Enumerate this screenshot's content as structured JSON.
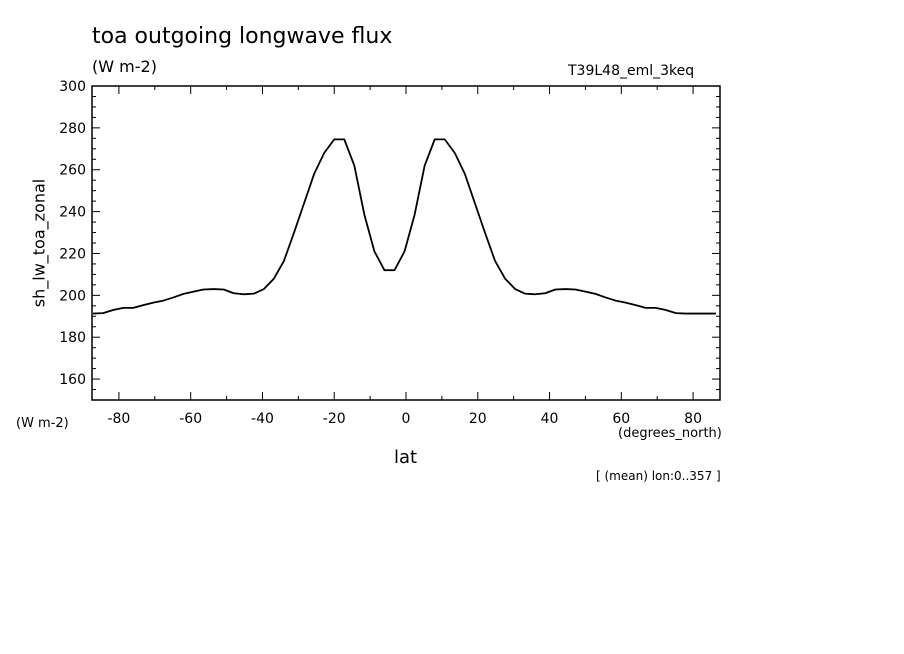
{
  "chart_data": {
    "type": "line",
    "title": "toa outgoing longwave flux",
    "units": "(W m-2)",
    "run_label": "T39L48_eml_3keq",
    "ylabel": "sh_lw_toa_zonal",
    "yunits": "(W m-2)",
    "xlabel": "lat",
    "xunits": "(degrees_north)",
    "note": "[ (mean) lon:0..357 ]",
    "xlim": [
      -87.5,
      87.5
    ],
    "ylim": [
      150,
      300
    ],
    "xticks": [
      -80,
      -60,
      -40,
      -20,
      0,
      20,
      40,
      60,
      80
    ],
    "yticks": [
      160,
      180,
      200,
      220,
      240,
      260,
      280,
      300
    ],
    "line_color": "#000000",
    "series": [
      {
        "x": [
          -87.2,
          -84.4,
          -81.6,
          -78.8,
          -76.0,
          -73.2,
          -70.4,
          -67.6,
          -64.8,
          -62.0,
          -59.2,
          -56.4,
          -53.6,
          -50.8,
          -48.0,
          -45.2,
          -42.4,
          -39.6,
          -36.8,
          -34.0,
          -31.2,
          -28.4,
          -25.6,
          -22.8,
          -20.0,
          -17.2,
          -14.4,
          -11.6,
          -8.8,
          -6.0,
          -3.2,
          -0.4,
          2.4,
          5.2,
          8.0,
          10.8,
          13.6,
          16.4,
          19.2,
          22.0,
          24.8,
          27.6,
          30.4,
          33.2,
          36.0,
          38.8,
          41.6,
          44.4,
          47.2,
          50.0,
          52.8,
          55.6,
          58.4,
          61.2,
          64.0,
          66.8,
          69.6,
          72.4,
          75.2,
          78.0,
          80.8,
          83.6,
          86.4
        ],
        "values": [
          191.3,
          191.5,
          193.0,
          194.0,
          194.0,
          195.3,
          196.5,
          197.5,
          199.0,
          200.7,
          201.8,
          202.8,
          203.0,
          202.8,
          201.0,
          200.5,
          200.8,
          203.0,
          208.0,
          216.5,
          230.0,
          244.0,
          258.0,
          268.0,
          274.5,
          274.5,
          262.0,
          238.5,
          221.0,
          212.0,
          212.0,
          221.0,
          238.5,
          262.0,
          274.5,
          274.5,
          268.0,
          258.0,
          244.0,
          230.0,
          216.5,
          208.0,
          203.0,
          200.8,
          200.5,
          201.0,
          202.8,
          203.0,
          202.8,
          201.8,
          200.7,
          199.0,
          197.5,
          196.5,
          195.3,
          194.0,
          194.0,
          193.0,
          191.5,
          191.3,
          191.3,
          191.3,
          191.3
        ]
      }
    ]
  }
}
